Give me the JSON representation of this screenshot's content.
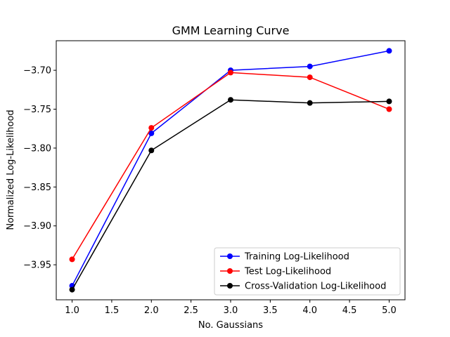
{
  "chart_data": {
    "type": "line",
    "title": "GMM Learning Curve",
    "xlabel": "No. Gaussians",
    "ylabel": "Normalized Log-Likelihood",
    "x": [
      1.0,
      2.0,
      3.0,
      4.0,
      5.0
    ],
    "xlim": [
      0.8,
      5.2
    ],
    "ylim": [
      -3.995,
      -3.662
    ],
    "xticks": [
      "1.0",
      "1.5",
      "2.0",
      "2.5",
      "3.0",
      "3.5",
      "4.0",
      "4.5",
      "5.0"
    ],
    "yticks": [
      "-3.70",
      "-3.75",
      "-3.80",
      "-3.85",
      "-3.90",
      "-3.95"
    ],
    "grid": false,
    "legend_position": "lower-right",
    "series": [
      {
        "name": "Training Log-Likelihood",
        "color": "#0000ff",
        "values": [
          -3.977,
          -3.781,
          -3.7,
          -3.695,
          -3.675
        ]
      },
      {
        "name": "Test Log-Likelihood",
        "color": "#ff0000",
        "values": [
          -3.943,
          -3.774,
          -3.703,
          -3.709,
          -3.75
        ]
      },
      {
        "name": "Cross-Validation Log-Likelihood",
        "color": "#000000",
        "values": [
          -3.982,
          -3.803,
          -3.738,
          -3.742,
          -3.74
        ]
      }
    ]
  }
}
